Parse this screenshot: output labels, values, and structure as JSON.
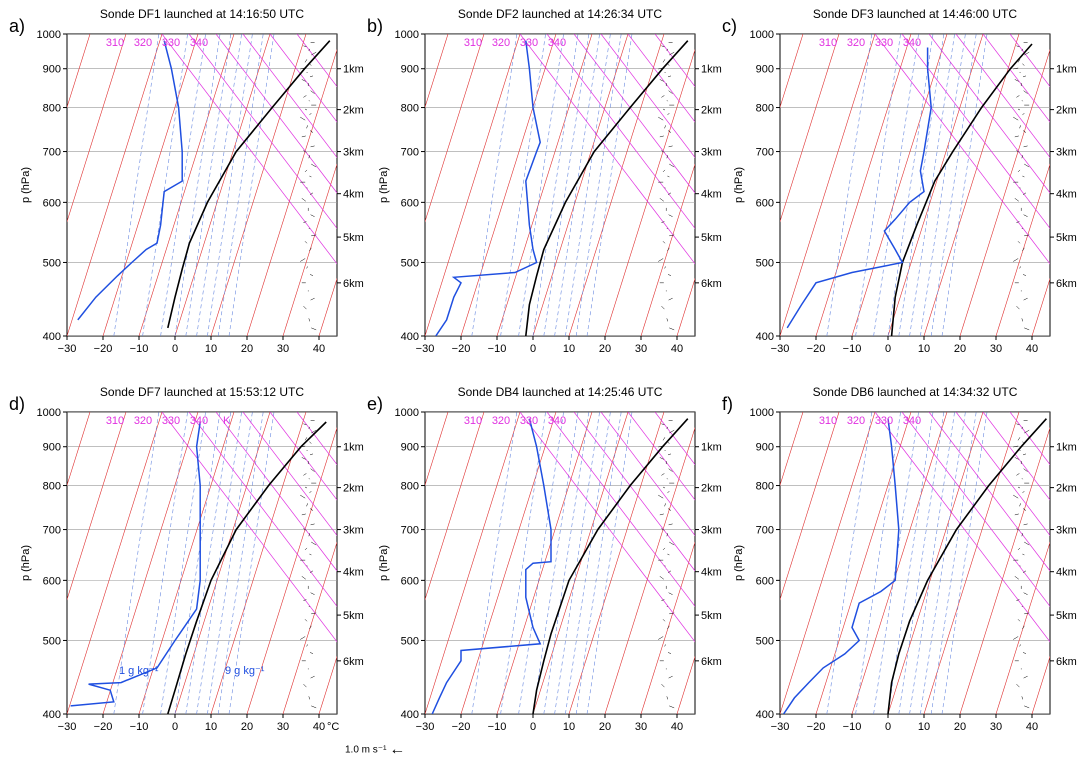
{
  "colors": {
    "temperature": "#000000",
    "dewpoint": "#1f4fe0",
    "isotherm": "#e03030",
    "dry_adiabat": "#e030e0",
    "mixing_ratio": "#6a8ae0",
    "grid": "#999999",
    "wind": "#000000"
  },
  "shared_axes": {
    "xlabel": "°C",
    "ylabel": "p (hPa)",
    "xlim": [
      -30,
      45
    ],
    "x_ticks": [
      "−30",
      "−20",
      "−10",
      "0",
      "10",
      "20",
      "30",
      "40"
    ],
    "ylim_hPa": [
      1000,
      400
    ],
    "p_ticks": [
      "400",
      "500",
      "600",
      "700",
      "800",
      "900",
      "1000"
    ],
    "height_ticks": [
      "6km",
      "5km",
      "4km",
      "3km",
      "2km",
      "1km"
    ],
    "isentrope_labels": [
      "310",
      "320",
      "330",
      "340"
    ],
    "isentrope_unit": "K",
    "mixing_ratio_labels": [
      "1 g kg⁻¹",
      "9 g kg⁻¹"
    ]
  },
  "wind_key": {
    "label": "1.0 m s⁻¹",
    "arrow": "←"
  },
  "chart_data": [
    {
      "panel": "a)",
      "type": "line",
      "title": "Sonde DF1 launched at 14:16:50 UTC",
      "series": [
        {
          "role": "temperature",
          "points": [
            [
              43,
              980
            ],
            [
              36,
              900
            ],
            [
              27,
              800
            ],
            [
              17,
              700
            ],
            [
              9,
              600
            ],
            [
              4,
              530
            ],
            [
              2,
              490
            ],
            [
              0,
              450
            ],
            [
              -2,
              410
            ]
          ]
        },
        {
          "role": "dewpoint",
          "points": [
            [
              -3,
              980
            ],
            [
              -1,
              900
            ],
            [
              1,
              800
            ],
            [
              2,
              700
            ],
            [
              2,
              640
            ],
            [
              -3,
              620
            ],
            [
              -4,
              560
            ],
            [
              -5,
              530
            ],
            [
              -8,
              520
            ],
            [
              -12,
              500
            ],
            [
              -16,
              480
            ],
            [
              -22,
              450
            ],
            [
              -27,
              420
            ]
          ]
        }
      ]
    },
    {
      "panel": "b)",
      "type": "line",
      "title": "Sonde DF2 launched at 14:26:34 UTC",
      "series": [
        {
          "role": "temperature",
          "points": [
            [
              43,
              980
            ],
            [
              36,
              900
            ],
            [
              27,
              800
            ],
            [
              17,
              700
            ],
            [
              9,
              600
            ],
            [
              3,
              520
            ],
            [
              1,
              480
            ],
            [
              -1,
              440
            ],
            [
              -2,
              400
            ]
          ]
        },
        {
          "role": "dewpoint",
          "points": [
            [
              -2,
              980
            ],
            [
              -1,
              900
            ],
            [
              0,
              800
            ],
            [
              2,
              720
            ],
            [
              1,
              700
            ],
            [
              -2,
              640
            ],
            [
              -1,
              560
            ],
            [
              0,
              520
            ],
            [
              1,
              500
            ],
            [
              -5,
              485
            ],
            [
              -22,
              478
            ],
            [
              -20,
              470
            ],
            [
              -22,
              450
            ],
            [
              -24,
              420
            ],
            [
              -27,
              400
            ]
          ]
        }
      ]
    },
    {
      "panel": "c)",
      "type": "line",
      "title": "Sonde DF3 launched at 14:46:00 UTC",
      "series": [
        {
          "role": "temperature",
          "points": [
            [
              40,
              970
            ],
            [
              34,
              900
            ],
            [
              26,
              800
            ],
            [
              18,
              700
            ],
            [
              13,
              640
            ],
            [
              8,
              560
            ],
            [
              4,
              500
            ],
            [
              2,
              450
            ],
            [
              1,
              400
            ]
          ]
        },
        {
          "role": "dewpoint",
          "points": [
            [
              11,
              960
            ],
            [
              11,
              900
            ],
            [
              12,
              800
            ],
            [
              10,
              700
            ],
            [
              9,
              660
            ],
            [
              10,
              620
            ],
            [
              6,
              600
            ],
            [
              2,
              570
            ],
            [
              -1,
              550
            ],
            [
              2,
              520
            ],
            [
              4,
              500
            ],
            [
              -10,
              485
            ],
            [
              -20,
              470
            ],
            [
              -24,
              440
            ],
            [
              -28,
              410
            ]
          ]
        }
      ]
    },
    {
      "panel": "d)",
      "type": "line",
      "title": "Sonde DF7 launched at 15:53:12 UTC",
      "series": [
        {
          "role": "temperature",
          "points": [
            [
              42,
              970
            ],
            [
              35,
              900
            ],
            [
              26,
              800
            ],
            [
              17,
              700
            ],
            [
              10,
              600
            ],
            [
              6,
              530
            ],
            [
              3,
              480
            ],
            [
              0,
              430
            ],
            [
              -2,
              400
            ]
          ]
        },
        {
          "role": "dewpoint",
          "points": [
            [
              7,
              970
            ],
            [
              6,
              900
            ],
            [
              7,
              800
            ],
            [
              7,
              700
            ],
            [
              7,
              600
            ],
            [
              6,
              550
            ],
            [
              0,
              500
            ],
            [
              -5,
              460
            ],
            [
              -15,
              440
            ],
            [
              -24,
              438
            ],
            [
              -18,
              430
            ],
            [
              -17,
              415
            ],
            [
              -29,
              410
            ]
          ]
        }
      ]
    },
    {
      "panel": "e)",
      "type": "line",
      "title": "Sonde DB4 launched at 14:25:46 UTC",
      "series": [
        {
          "role": "temperature",
          "points": [
            [
              43,
              980
            ],
            [
              36,
              900
            ],
            [
              27,
              800
            ],
            [
              18,
              700
            ],
            [
              10,
              600
            ],
            [
              5,
              510
            ],
            [
              3,
              470
            ],
            [
              1,
              430
            ],
            [
              0,
              400
            ]
          ]
        },
        {
          "role": "dewpoint",
          "points": [
            [
              -1,
              980
            ],
            [
              1,
              900
            ],
            [
              3,
              800
            ],
            [
              5,
              700
            ],
            [
              5,
              635
            ],
            [
              0,
              632
            ],
            [
              -2,
              620
            ],
            [
              -2,
              570
            ],
            [
              0,
              520
            ],
            [
              2,
              495
            ],
            [
              -20,
              485
            ],
            [
              -20,
              470
            ],
            [
              -24,
              440
            ],
            [
              -26,
              420
            ],
            [
              -28,
              400
            ]
          ]
        }
      ]
    },
    {
      "panel": "f)",
      "type": "line",
      "title": "Sonde DB6 launched at 14:34:32 UTC",
      "series": [
        {
          "role": "temperature",
          "points": [
            [
              44,
              980
            ],
            [
              37,
              900
            ],
            [
              28,
              800
            ],
            [
              19,
              700
            ],
            [
              11,
              600
            ],
            [
              6,
              530
            ],
            [
              3,
              480
            ],
            [
              1,
              440
            ],
            [
              0,
              400
            ]
          ]
        },
        {
          "role": "dewpoint",
          "points": [
            [
              0,
              980
            ],
            [
              1,
              900
            ],
            [
              2,
              800
            ],
            [
              3,
              700
            ],
            [
              2,
              600
            ],
            [
              -2,
              580
            ],
            [
              -8,
              560
            ],
            [
              -10,
              520
            ],
            [
              -8,
              500
            ],
            [
              -12,
              480
            ],
            [
              -18,
              460
            ],
            [
              -22,
              440
            ],
            [
              -26,
              420
            ],
            [
              -29,
              400
            ]
          ]
        }
      ]
    }
  ]
}
